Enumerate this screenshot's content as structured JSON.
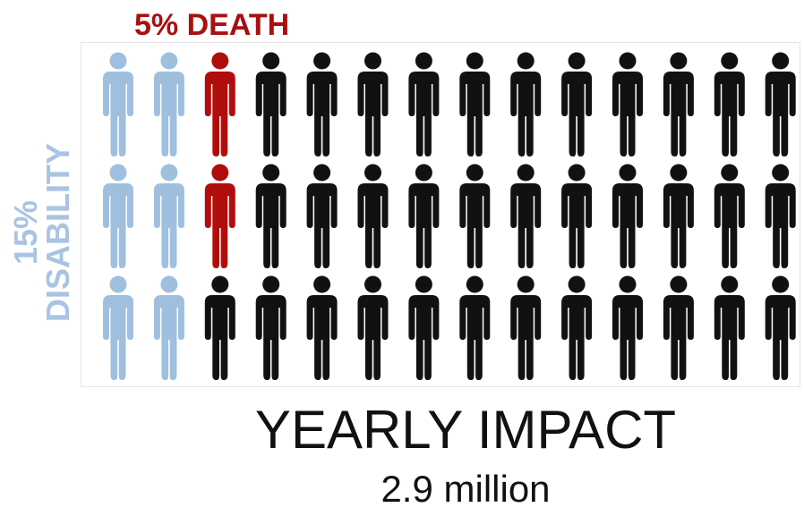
{
  "labels": {
    "death": "5% DEATH",
    "disability_percent": "15%",
    "disability_word": "DISABILITY"
  },
  "impact": {
    "title": "YEARLY IMPACT",
    "value": "2.9 million"
  },
  "grid": {
    "rows": 3,
    "columns": 14,
    "groups": [
      {
        "label": "disability",
        "count": 6,
        "icon": "person-icon"
      },
      {
        "label": "death",
        "count": 2,
        "icon": "person-icon"
      },
      {
        "label": "other",
        "count": 34,
        "icon": "person-icon"
      }
    ]
  },
  "colors": {
    "disability": "#9fbfde",
    "death": "#b00d0d",
    "other": "#111111",
    "death_label": "#a81010",
    "disability_label": "#a9c4e2"
  }
}
